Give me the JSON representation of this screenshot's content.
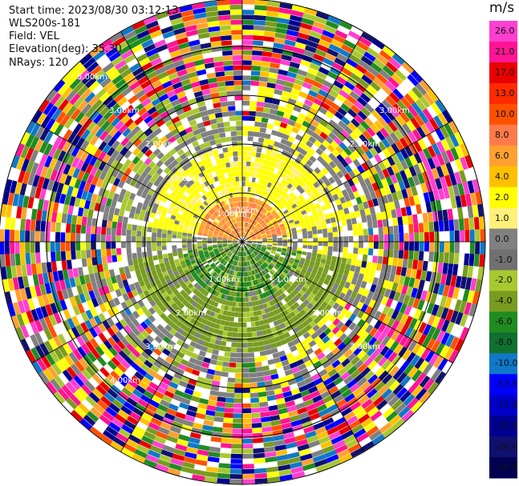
{
  "header": {
    "start_time": "Start time: 2023/08/30 03:12:13",
    "instrument": "WLS200s-181",
    "field": "Field: VEL",
    "elevation": "Elevation(deg): 35.30",
    "nrays": "NRays: 120"
  },
  "chart_data": {
    "type": "ppi_polar_heatmap",
    "field": "VEL",
    "units": "m/s",
    "nrays": 120,
    "elevation_deg": 35.3,
    "range_rings_km": [
      "1.00km",
      "2.00km",
      "3.00km",
      "4.00km",
      "5.00km"
    ],
    "range_labels": [
      "1.00km",
      "1.00km",
      "1.00km",
      "1.00km",
      "1.00km",
      "2.00km",
      "2.00km",
      "2.00km",
      "2.00km",
      "3.00km",
      "3.00km",
      "3.00km",
      "3.00km",
      "4.00km",
      "5.00km"
    ],
    "colorbar": {
      "unit_label": "m/s",
      "ticks": [
        "26.0",
        "21.0",
        "17.0",
        "13.0",
        "10.0",
        "8.0",
        "6.0",
        "4.0",
        "2.0",
        "1.0",
        "0.0",
        "-1.0",
        "-2.0",
        "-4.0",
        "-6.0",
        "-8.0",
        "-10.0",
        "-13.0",
        "-17.0",
        "-21.0",
        "-26.0",
        "-30.0"
      ],
      "colors": [
        "#ff3fd0",
        "#ff1493",
        "#e80000",
        "#ff2a00",
        "#ff5000",
        "#ff7a4a",
        "#ffa030",
        "#ffc000",
        "#ffff00",
        "#fff07a",
        "#808080",
        "#707070",
        "#a8c830",
        "#789c20",
        "#208c20",
        "#107030",
        "#1078c8",
        "#0000ff",
        "#0000c8",
        "#000090",
        "#101070",
        "#000050"
      ]
    },
    "pattern": {
      "inner_positive_zone_km": 1.9,
      "clean_zone_km": 2.1,
      "noise_start_km": 3.2
    }
  }
}
